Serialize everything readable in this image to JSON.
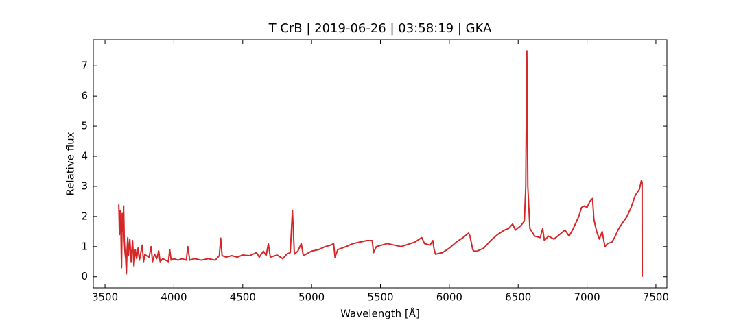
{
  "chart_data": {
    "type": "line",
    "title": "T CrB | 2019-06-26 | 03:58:19 | GKA",
    "xlabel": "Wavelength [Å]",
    "ylabel": "Relative flux",
    "xlim": [
      3415,
      7580
    ],
    "ylim": [
      -0.37,
      7.87
    ],
    "xticks": [
      3500,
      4000,
      4500,
      5000,
      5500,
      6000,
      6500,
      7000,
      7500
    ],
    "yticks": [
      0,
      1,
      2,
      3,
      4,
      5,
      6,
      7
    ],
    "ticks_inward": true,
    "series": [
      {
        "color": "#d62728",
        "x": [
          3600,
          3605,
          3610,
          3615,
          3620,
          3625,
          3630,
          3635,
          3640,
          3645,
          3650,
          3655,
          3660,
          3665,
          3670,
          3680,
          3690,
          3700,
          3710,
          3720,
          3730,
          3740,
          3750,
          3760,
          3770,
          3780,
          3790,
          3800,
          3820,
          3835,
          3845,
          3860,
          3875,
          3890,
          3900,
          3920,
          3940,
          3960,
          3970,
          3980,
          4000,
          4030,
          4060,
          4090,
          4101,
          4115,
          4150,
          4200,
          4250,
          4300,
          4330,
          4340,
          4350,
          4380,
          4420,
          4460,
          4500,
          4550,
          4600,
          4620,
          4650,
          4670,
          4686,
          4700,
          4750,
          4790,
          4820,
          4845,
          4861,
          4875,
          4900,
          4925,
          4940,
          4960,
          5000,
          5050,
          5100,
          5140,
          5160,
          5170,
          5190,
          5250,
          5300,
          5350,
          5400,
          5440,
          5450,
          5470,
          5550,
          5650,
          5750,
          5800,
          5820,
          5860,
          5880,
          5890,
          5900,
          5950,
          6000,
          6050,
          6100,
          6140,
          6150,
          6170,
          6180,
          6200,
          6250,
          6300,
          6350,
          6400,
          6430,
          6460,
          6480,
          6520,
          6545,
          6555,
          6563,
          6570,
          6585,
          6620,
          6660,
          6678,
          6690,
          6720,
          6760,
          6800,
          6840,
          6870,
          6900,
          6940,
          6960,
          6980,
          7000,
          7020,
          7040,
          7050,
          7070,
          7090,
          7110,
          7130,
          7150,
          7180,
          7200,
          7230,
          7260,
          7290,
          7320,
          7350,
          7380,
          7395,
          7400,
          7401
        ],
        "values": [
          2.4,
          1.4,
          2.2,
          1.6,
          0.3,
          2.1,
          1.5,
          2.35,
          1.2,
          0.8,
          0.6,
          0.1,
          0.9,
          1.3,
          0.7,
          1.25,
          0.5,
          1.2,
          0.35,
          0.9,
          0.6,
          0.95,
          0.55,
          0.8,
          1.05,
          0.5,
          0.75,
          0.7,
          0.65,
          1.0,
          0.5,
          0.75,
          0.6,
          0.85,
          0.5,
          0.6,
          0.55,
          0.5,
          0.9,
          0.55,
          0.6,
          0.55,
          0.6,
          0.55,
          1.0,
          0.55,
          0.6,
          0.55,
          0.6,
          0.55,
          0.7,
          1.28,
          0.7,
          0.65,
          0.7,
          0.65,
          0.72,
          0.7,
          0.8,
          0.65,
          0.85,
          0.7,
          1.1,
          0.65,
          0.72,
          0.6,
          0.75,
          0.8,
          2.2,
          0.75,
          0.85,
          1.1,
          0.7,
          0.75,
          0.85,
          0.9,
          1.0,
          1.05,
          1.1,
          0.65,
          0.9,
          1.0,
          1.1,
          1.15,
          1.2,
          1.2,
          0.8,
          1.0,
          1.1,
          1.0,
          1.15,
          1.3,
          1.1,
          1.05,
          1.2,
          0.9,
          0.75,
          0.8,
          0.95,
          1.15,
          1.3,
          1.45,
          1.35,
          0.9,
          0.85,
          0.85,
          0.95,
          1.2,
          1.4,
          1.55,
          1.6,
          1.75,
          1.55,
          1.7,
          1.85,
          3.0,
          7.5,
          3.0,
          1.6,
          1.35,
          1.3,
          1.6,
          1.2,
          1.35,
          1.25,
          1.4,
          1.55,
          1.35,
          1.6,
          2.0,
          2.3,
          2.35,
          2.3,
          2.5,
          2.6,
          1.9,
          1.5,
          1.25,
          1.5,
          1.0,
          1.1,
          1.15,
          1.3,
          1.6,
          1.8,
          2.0,
          2.3,
          2.7,
          2.9,
          3.2,
          3.15,
          0.0
        ]
      }
    ]
  }
}
